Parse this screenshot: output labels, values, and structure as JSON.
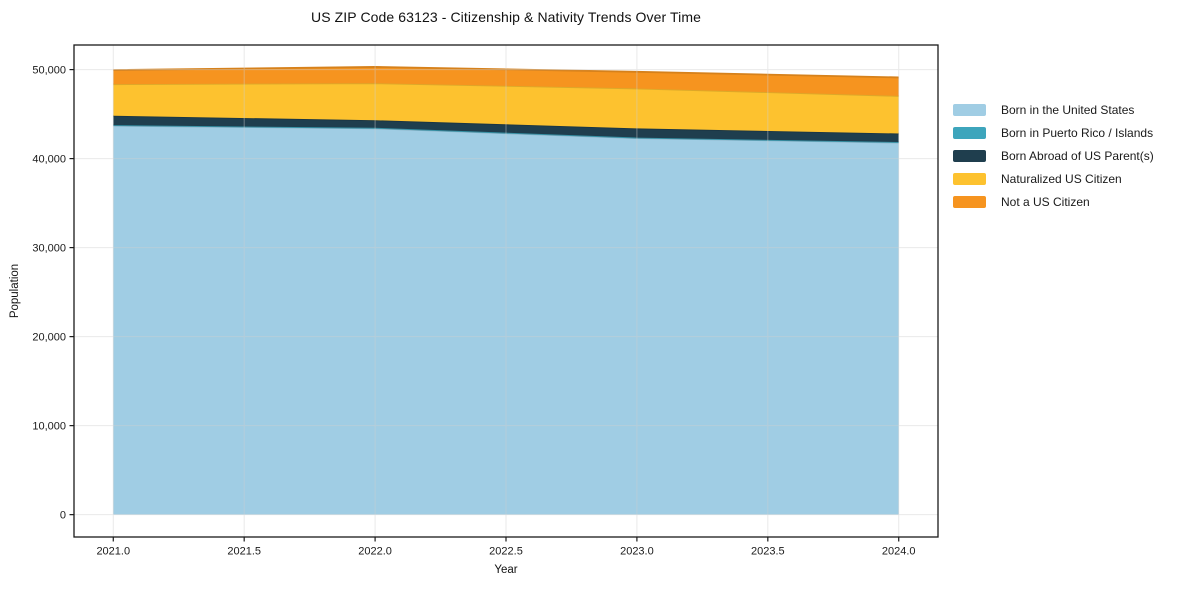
{
  "chart_data": {
    "type": "area",
    "stacked": true,
    "title": "US ZIP Code 63123 - Citizenship & Nativity Trends Over Time",
    "xlabel": "Year",
    "ylabel": "Population",
    "x": [
      2021,
      2022,
      2023,
      2024
    ],
    "series": [
      {
        "name": "Born in the United States",
        "color": "#a0cde4",
        "values": [
          43700,
          43400,
          42300,
          41800
        ]
      },
      {
        "name": "Born in Puerto Rico / Islands",
        "color": "#3da5bc",
        "values": [
          60,
          60,
          60,
          60
        ]
      },
      {
        "name": "Born Abroad of US Parent(s)",
        "color": "#1f3e4e",
        "values": [
          1050,
          850,
          1030,
          960
        ]
      },
      {
        "name": "Naturalized US Citizen",
        "color": "#fdc22f",
        "values": [
          3550,
          4160,
          4490,
          4220
        ]
      },
      {
        "name": "Not a US Citizen",
        "color": "#f6941f",
        "values": [
          1580,
          1830,
          1870,
          2080
        ]
      }
    ],
    "xticks": {
      "values": [
        2021.0,
        2021.5,
        2022.0,
        2022.5,
        2023.0,
        2023.5,
        2024.0
      ],
      "labels": [
        "2021.0",
        "2021.5",
        "2022.0",
        "2022.5",
        "2023.0",
        "2023.5",
        "2024.0"
      ]
    },
    "yticks": {
      "values": [
        0,
        10000,
        20000,
        30000,
        40000,
        50000
      ],
      "labels": [
        "0",
        "10,000",
        "20,000",
        "30,000",
        "40,000",
        "50,000"
      ]
    },
    "xlim": [
      2020.85,
      2024.15
    ],
    "ylim": [
      -2512,
      52762
    ],
    "grid": true,
    "legend_position": "right-outside",
    "colors": {
      "spine": "#1a1a1a",
      "gridline": "#cfcfcf",
      "tick_label": "#1a1a1a",
      "background": "#ffffff"
    }
  }
}
